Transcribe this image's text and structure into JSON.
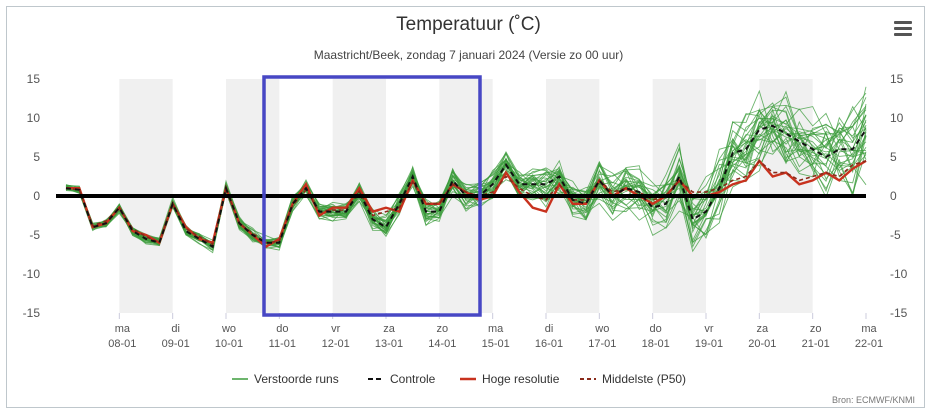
{
  "chart_data": {
    "type": "line",
    "title": "Temperatuur (˚C)",
    "subtitle": "Maastricht/Beek, zondag 7 januari 2024 (Versie zo 00 uur)",
    "ylim": [
      -15,
      15
    ],
    "yticks": [
      15,
      10,
      5,
      0,
      -5,
      -10,
      -15
    ],
    "xlim": [
      0,
      15
    ],
    "x_ticks": [
      {
        "x": 1,
        "day": "ma",
        "date": "08-01"
      },
      {
        "x": 2,
        "day": "di",
        "date": "09-01"
      },
      {
        "x": 3,
        "day": "wo",
        "date": "10-01"
      },
      {
        "x": 4,
        "day": "do",
        "date": "11-01"
      },
      {
        "x": 5,
        "day": "vr",
        "date": "12-01"
      },
      {
        "x": 6,
        "day": "za",
        "date": "13-01"
      },
      {
        "x": 7,
        "day": "zo",
        "date": "14-01"
      },
      {
        "x": 8,
        "day": "ma",
        "date": "15-01"
      },
      {
        "x": 9,
        "day": "di",
        "date": "16-01"
      },
      {
        "x": 10,
        "day": "wo",
        "date": "17-01"
      },
      {
        "x": 11,
        "day": "do",
        "date": "18-01"
      },
      {
        "x": 12,
        "day": "vr",
        "date": "19-01"
      },
      {
        "x": 13,
        "day": "za",
        "date": "20-01"
      },
      {
        "x": 14,
        "day": "zo",
        "date": "21-01"
      },
      {
        "x": 15,
        "day": "ma",
        "date": "22-01"
      }
    ],
    "shaded_bands": [
      [
        1,
        2
      ],
      [
        3,
        4
      ],
      [
        5,
        6
      ],
      [
        7,
        8
      ],
      [
        9,
        10
      ],
      [
        11,
        12
      ],
      [
        13,
        14
      ]
    ],
    "zero_line": 0,
    "highlight_box": {
      "x_from": 3.9,
      "x_to": 7.7,
      "y_from": 15,
      "y_to": -15
    },
    "x_times": [
      0,
      0.25,
      0.5,
      0.75,
      1,
      1.25,
      1.5,
      1.75,
      2,
      2.25,
      2.5,
      2.75,
      3,
      3.25,
      3.5,
      3.75,
      4,
      4.25,
      4.5,
      4.75,
      5,
      5.25,
      5.5,
      5.75,
      6,
      6.25,
      6.5,
      6.75,
      7,
      7.25,
      7.5,
      7.75,
      8,
      8.25,
      8.5,
      8.75,
      9,
      9.25,
      9.5,
      9.75,
      10,
      10.25,
      10.5,
      10.75,
      11,
      11.25,
      11.5,
      11.75,
      12,
      12.25,
      12.5,
      12.75,
      13,
      13.25,
      13.5,
      13.75,
      14,
      14.25,
      14.5,
      14.75,
      15
    ],
    "series": [
      {
        "name": "Verstoorde runs",
        "color": "#3c9c3c",
        "style": "ensemble",
        "members": 30,
        "spread_start": 0.6,
        "spread_end": 6.5
      },
      {
        "name": "Controle",
        "color": "#111111",
        "style": "dashed",
        "values": [
          1,
          0.8,
          -4,
          -3.5,
          -1.5,
          -4.5,
          -5.5,
          -6,
          -1,
          -4.5,
          -5.5,
          -6.5,
          1,
          -3.5,
          -5,
          -6,
          -6,
          -1,
          1,
          -2,
          -2,
          -2,
          0.5,
          -3,
          -4,
          -1,
          2.5,
          -2,
          -2,
          2,
          0,
          0,
          1.5,
          4,
          1.5,
          1.5,
          1.5,
          2.5,
          -0.5,
          -1,
          2,
          0,
          1,
          0.5,
          -1.5,
          -1,
          2.5,
          -3,
          -2,
          1,
          5.5,
          6,
          8.5,
          9,
          8,
          7,
          6,
          5,
          6,
          6,
          8.5
        ]
      },
      {
        "name": "Hoge resolutie",
        "color": "#c8321e",
        "style": "solid",
        "values": [
          1,
          1,
          -4,
          -3.5,
          -1.5,
          -4.5,
          -5,
          -6,
          -1,
          -4,
          -5.5,
          -6,
          1,
          -3.5,
          -5,
          -6.5,
          -5.5,
          -1,
          1.5,
          -2.5,
          -1.5,
          -1.5,
          1,
          -2,
          -1.5,
          -2,
          2,
          -1,
          -1,
          1.5,
          0.5,
          -0.5,
          0,
          3,
          0.5,
          -1.5,
          -2,
          1.5,
          -1,
          -1,
          2,
          0,
          1,
          0,
          -1,
          0,
          2,
          0,
          0,
          0.5,
          1.5,
          2,
          4.5,
          2.5,
          3,
          1.5,
          2,
          3,
          2,
          3.5,
          4.5
        ]
      },
      {
        "name": "Middelste (P50)",
        "color": "#8a2a1a",
        "style": "dashed",
        "values": [
          1,
          0.8,
          -3.8,
          -3.2,
          -1.5,
          -4.2,
          -5.2,
          -6,
          -1,
          -4.2,
          -5.2,
          -6.2,
          0.8,
          -3.5,
          -4.8,
          -6,
          -5.8,
          -1.2,
          0.8,
          -2,
          -1.8,
          -1.8,
          0.6,
          -2.5,
          -2,
          -1.5,
          1.8,
          -1,
          -1,
          1.5,
          0.5,
          0,
          0.5,
          2.5,
          1,
          0,
          -0.5,
          1.5,
          -0.5,
          -0.5,
          2,
          0.5,
          1,
          0.5,
          -0.5,
          0,
          2,
          0.5,
          0.5,
          1,
          2,
          2.5,
          4.5,
          3,
          3,
          2,
          2.5,
          3,
          2.5,
          4,
          4.5
        ]
      }
    ],
    "legend": [
      "Verstoorde runs",
      "Controle",
      "Hoge resolutie",
      "Middelste (P50)"
    ],
    "legend_position": "bottom-center",
    "grid": false
  },
  "credit": "Bron: ECMWF/KNMI"
}
